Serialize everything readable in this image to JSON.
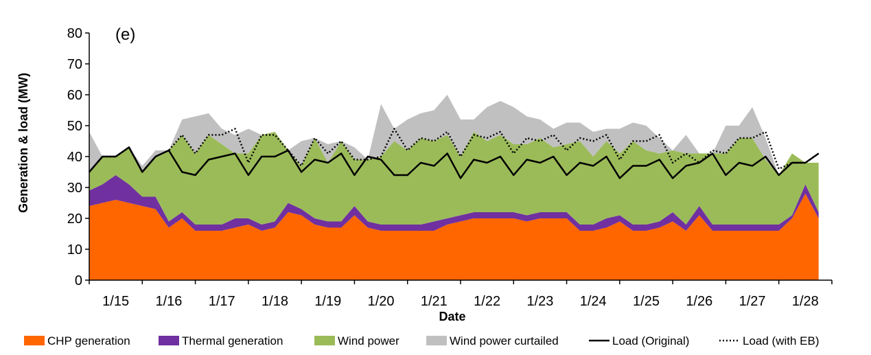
{
  "chart_data": {
    "type": "area",
    "panel_label": "(e)",
    "xlabel": "Date",
    "ylabel": "Generation & load (MW)",
    "ylim": [
      0,
      80
    ],
    "yticks": [
      0,
      10,
      20,
      30,
      40,
      50,
      60,
      70,
      80
    ],
    "x_unit": "day",
    "xlim": [
      0,
      14
    ],
    "xtick_labels": [
      "1/15",
      "1/16",
      "1/17",
      "1/18",
      "1/19",
      "1/20",
      "1/21",
      "1/22",
      "1/23",
      "1/24",
      "1/25",
      "1/26",
      "1/27",
      "1/28"
    ],
    "legend_position": "bottom",
    "stacked": true,
    "series": [
      {
        "name": "CHP generation",
        "kind": "area",
        "color": "#FF6600",
        "x": [
          0,
          0.25,
          0.5,
          0.75,
          1,
          1.25,
          1.5,
          1.75,
          2,
          2.25,
          2.5,
          2.75,
          3,
          3.25,
          3.5,
          3.75,
          4,
          4.25,
          4.5,
          4.75,
          5,
          5.25,
          5.5,
          5.75,
          6,
          6.25,
          6.5,
          6.75,
          7,
          7.25,
          7.5,
          7.75,
          8,
          8.25,
          8.5,
          8.75,
          9,
          9.25,
          9.5,
          9.75,
          10,
          10.25,
          10.5,
          10.75,
          11,
          11.25,
          11.5,
          11.75,
          12,
          12.25,
          12.5,
          12.75,
          13,
          13.25,
          13.5,
          13.75
        ],
        "values": [
          24,
          25,
          26,
          25,
          24,
          23,
          17,
          20,
          16,
          16,
          16,
          17,
          18,
          16,
          17,
          22,
          21,
          18,
          17,
          17,
          21,
          17,
          16,
          16,
          16,
          16,
          16,
          18,
          19,
          20,
          20,
          20,
          20,
          19,
          20,
          20,
          20,
          16,
          16,
          17,
          19,
          16,
          16,
          17,
          19,
          16,
          21,
          16,
          16,
          16,
          16,
          16,
          16,
          20,
          28,
          20
        ]
      },
      {
        "name": "Thermal generation",
        "kind": "area",
        "color": "#7030A0",
        "x": [
          0,
          0.25,
          0.5,
          0.75,
          1,
          1.25,
          1.5,
          1.75,
          2,
          2.25,
          2.5,
          2.75,
          3,
          3.25,
          3.5,
          3.75,
          4,
          4.25,
          4.5,
          4.75,
          5,
          5.25,
          5.5,
          5.75,
          6,
          6.25,
          6.5,
          6.75,
          7,
          7.25,
          7.5,
          7.75,
          8,
          8.25,
          8.5,
          8.75,
          9,
          9.25,
          9.5,
          9.75,
          10,
          10.25,
          10.5,
          10.75,
          11,
          11.25,
          11.5,
          11.75,
          12,
          12.25,
          12.5,
          12.75,
          13,
          13.25,
          13.5,
          13.75
        ],
        "values": [
          5,
          6,
          8,
          6,
          3,
          4,
          2,
          2,
          2,
          2,
          2,
          3,
          2,
          2,
          2,
          3,
          2,
          2,
          2,
          2,
          3,
          2,
          2,
          2,
          2,
          2,
          3,
          2,
          2,
          2,
          2,
          2,
          2,
          2,
          2,
          2,
          2,
          2,
          2,
          3,
          2,
          2,
          2,
          2,
          3,
          2,
          3,
          2,
          2,
          2,
          2,
          2,
          2,
          1,
          3,
          2
        ]
      },
      {
        "name": "Wind power",
        "kind": "area",
        "color": "#9BBB59",
        "x": [
          0,
          0.25,
          0.5,
          0.75,
          1,
          1.25,
          1.5,
          1.75,
          2,
          2.25,
          2.5,
          2.75,
          3,
          3.25,
          3.5,
          3.75,
          4,
          4.25,
          4.5,
          4.75,
          5,
          5.25,
          5.5,
          5.75,
          6,
          6.25,
          6.5,
          6.75,
          7,
          7.25,
          7.5,
          7.75,
          8,
          8.25,
          8.5,
          8.75,
          9,
          9.25,
          9.5,
          9.75,
          10,
          10.25,
          10.5,
          10.75,
          11,
          11.25,
          11.5,
          11.75,
          12,
          12.25,
          12.5,
          12.75,
          13,
          13.25,
          13.5,
          13.75
        ],
        "values": [
          6,
          9,
          6,
          12,
          8,
          13,
          23,
          25,
          23,
          29,
          26,
          21,
          21,
          29,
          29,
          17,
          14,
          26,
          19,
          26,
          15,
          20,
          22,
          27,
          24,
          28,
          26,
          27,
          19,
          26,
          23,
          25,
          22,
          23,
          24,
          21,
          22,
          27,
          22,
          25,
          20,
          27,
          24,
          22,
          20,
          23,
          17,
          23,
          23,
          28,
          28,
          21,
          16,
          20,
          7,
          16
        ]
      },
      {
        "name": "Wind power curtailed",
        "kind": "area",
        "color": "#C0C0C0",
        "x": [
          0,
          0.25,
          0.5,
          0.75,
          1,
          1.25,
          1.5,
          1.75,
          2,
          2.25,
          2.5,
          2.75,
          3,
          3.25,
          3.5,
          3.75,
          4,
          4.25,
          4.5,
          4.75,
          5,
          5.25,
          5.5,
          5.75,
          6,
          6.25,
          6.5,
          6.75,
          7,
          7.25,
          7.5,
          7.75,
          8,
          8.25,
          8.5,
          8.75,
          9,
          9.25,
          9.5,
          9.75,
          10,
          10.25,
          10.5,
          10.75,
          11,
          11.25,
          11.5,
          11.75,
          12,
          12.25,
          12.5,
          12.75,
          13,
          13.25,
          13.5,
          13.75
        ],
        "values": [
          13,
          0,
          0,
          0,
          2,
          2,
          0,
          5,
          12,
          7,
          5,
          6,
          8,
          0,
          0,
          0,
          8,
          0,
          6,
          0,
          4,
          0,
          17,
          4,
          10,
          8,
          10,
          13,
          12,
          4,
          11,
          11,
          12,
          9,
          6,
          6,
          7,
          6,
          8,
          4,
          8,
          6,
          8,
          5,
          0,
          6,
          0,
          0,
          9,
          4,
          10,
          7,
          0,
          0,
          0,
          0
        ]
      },
      {
        "name": "Load (Original)",
        "kind": "line",
        "style": "solid",
        "color": "#000000",
        "x": [
          0,
          0.25,
          0.5,
          0.75,
          1,
          1.25,
          1.5,
          1.75,
          2,
          2.25,
          2.5,
          2.75,
          3,
          3.25,
          3.5,
          3.75,
          4,
          4.25,
          4.5,
          4.75,
          5,
          5.25,
          5.5,
          5.75,
          6,
          6.25,
          6.5,
          6.75,
          7,
          7.25,
          7.5,
          7.75,
          8,
          8.25,
          8.5,
          8.75,
          9,
          9.25,
          9.5,
          9.75,
          10,
          10.25,
          10.5,
          10.75,
          11,
          11.25,
          11.5,
          11.75,
          12,
          12.25,
          12.5,
          12.75,
          13,
          13.25,
          13.5,
          13.75
        ],
        "values": [
          35,
          40,
          40,
          43,
          35,
          40,
          42,
          35,
          34,
          39,
          40,
          41,
          34,
          40,
          40,
          42,
          35,
          39,
          38,
          41,
          34,
          40,
          39,
          34,
          34,
          38,
          37,
          41,
          33,
          39,
          38,
          40,
          34,
          39,
          38,
          40,
          34,
          38,
          37,
          40,
          33,
          37,
          37,
          39,
          33,
          37,
          38,
          41,
          34,
          38,
          37,
          40,
          34,
          38,
          38,
          41
        ]
      },
      {
        "name": "Load (with EB)",
        "kind": "line",
        "style": "dotted",
        "color": "#000000",
        "x": [
          0,
          0.25,
          0.5,
          0.75,
          1,
          1.25,
          1.5,
          1.75,
          2,
          2.25,
          2.5,
          2.75,
          3,
          3.25,
          3.5,
          3.75,
          4,
          4.25,
          4.5,
          4.75,
          5,
          5.25,
          5.5,
          5.75,
          6,
          6.25,
          6.5,
          6.75,
          7,
          7.25,
          7.5,
          7.75,
          8,
          8.25,
          8.5,
          8.75,
          9,
          9.25,
          9.5,
          9.75,
          10,
          10.25,
          10.5,
          10.75,
          11,
          11.25,
          11.5,
          11.75,
          12,
          12.25,
          12.5,
          12.75,
          13,
          13.25,
          13.5,
          13.75
        ],
        "values": [
          35,
          40,
          40,
          43,
          35,
          40,
          42,
          47,
          41,
          47,
          47,
          49,
          38,
          47,
          47,
          42,
          37,
          46,
          41,
          45,
          39,
          39,
          40,
          49,
          42,
          46,
          45,
          48,
          40,
          47,
          46,
          48,
          41,
          46,
          45,
          47,
          42,
          46,
          45,
          47,
          39,
          45,
          45,
          47,
          38,
          41,
          38,
          42,
          41,
          46,
          46,
          48,
          36,
          38,
          38,
          41
        ]
      }
    ]
  }
}
